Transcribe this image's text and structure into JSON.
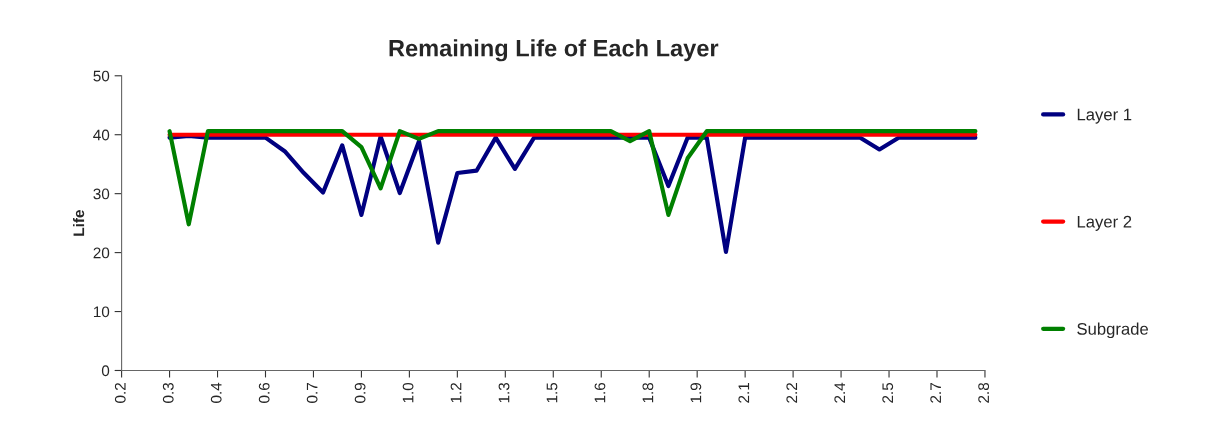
{
  "chart_data": {
    "type": "line",
    "title": "Remaining Life of Each Layer",
    "ylabel": "Life",
    "x": [
      0.3,
      0.36,
      0.42,
      0.48,
      0.54,
      0.6,
      0.66,
      0.72,
      0.78,
      0.84,
      0.9,
      0.96,
      1.02,
      1.08,
      1.14,
      1.2,
      1.26,
      1.32,
      1.38,
      1.44,
      1.5,
      1.56,
      1.62,
      1.68,
      1.74,
      1.8,
      1.86,
      1.92,
      1.98,
      2.04,
      2.1,
      2.16,
      2.22,
      2.28,
      2.34,
      2.4,
      2.46,
      2.52,
      2.58,
      2.64,
      2.7,
      2.76,
      2.82
    ],
    "series": [
      {
        "name": "Layer 1",
        "color": "#000080",
        "values": [
          39.5,
          39.8,
          39.5,
          39.5,
          39.5,
          39.5,
          37.2,
          33.5,
          30.2,
          38.2,
          26.4,
          39.7,
          30.1,
          38.9,
          21.7,
          33.5,
          33.9,
          39.5,
          34.2,
          39.5,
          39.5,
          39.5,
          39.5,
          39.5,
          39.5,
          39.5,
          31.3,
          39.5,
          39.5,
          20.1,
          39.5,
          39.5,
          39.5,
          39.5,
          39.5,
          39.5,
          39.5,
          37.5,
          39.5,
          39.5,
          39.5,
          39.5,
          39.5
        ]
      },
      {
        "name": "Layer 2",
        "color": "#ff0000",
        "values": [
          40,
          40,
          40,
          40,
          40,
          40,
          40,
          40,
          40,
          40,
          40,
          40,
          40,
          40,
          40,
          40,
          40,
          40,
          40,
          40,
          40,
          40,
          40,
          40,
          40,
          40,
          40,
          40,
          40,
          40,
          40,
          40,
          40,
          40,
          40,
          40,
          40,
          40,
          40,
          40,
          40,
          40,
          40
        ]
      },
      {
        "name": "Subgrade",
        "color": "#008000",
        "values": [
          40.6,
          24.8,
          40.6,
          40.6,
          40.6,
          40.6,
          40.6,
          40.6,
          40.6,
          40.6,
          37.9,
          30.9,
          40.6,
          39.3,
          40.6,
          40.6,
          40.6,
          40.6,
          40.6,
          40.6,
          40.6,
          40.6,
          40.6,
          40.6,
          38.9,
          40.6,
          26.4,
          36.0,
          40.6,
          40.6,
          40.6,
          40.6,
          40.6,
          40.6,
          40.6,
          40.6,
          40.6,
          40.6,
          40.6,
          40.6,
          40.6,
          40.6,
          40.6
        ]
      }
    ],
    "xlim": [
      0.15,
      2.85
    ],
    "xticks": [
      {
        "value": 0.15,
        "label": "0.2"
      },
      {
        "value": 0.3,
        "label": "0.3"
      },
      {
        "value": 0.45,
        "label": "0.4"
      },
      {
        "value": 0.6,
        "label": "0.6"
      },
      {
        "value": 0.75,
        "label": "0.7"
      },
      {
        "value": 0.9,
        "label": "0.9"
      },
      {
        "value": 1.05,
        "label": "1.0"
      },
      {
        "value": 1.2,
        "label": "1.2"
      },
      {
        "value": 1.35,
        "label": "1.3"
      },
      {
        "value": 1.5,
        "label": "1.5"
      },
      {
        "value": 1.65,
        "label": "1.6"
      },
      {
        "value": 1.8,
        "label": "1.8"
      },
      {
        "value": 1.95,
        "label": "1.9"
      },
      {
        "value": 2.1,
        "label": "2.1"
      },
      {
        "value": 2.25,
        "label": "2.2"
      },
      {
        "value": 2.4,
        "label": "2.4"
      },
      {
        "value": 2.55,
        "label": "2.5"
      },
      {
        "value": 2.7,
        "label": "2.7"
      },
      {
        "value": 2.85,
        "label": "2.8"
      }
    ],
    "ylim": [
      0,
      50
    ],
    "yticks": [
      0,
      10,
      20,
      30,
      40,
      50
    ],
    "grid": false,
    "legend": "right",
    "marker": "none",
    "line_style": "solid"
  }
}
